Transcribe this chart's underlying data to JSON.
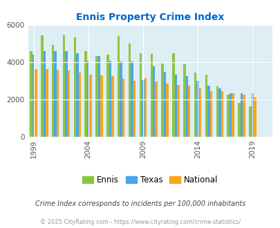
{
  "title": "Ennis Property Crime Index",
  "subtitle": "Crime Index corresponds to incidents per 100,000 inhabitants",
  "footer": "© 2025 CityRating.com - https://www.cityrating.com/crime-statistics/",
  "years": [
    1999,
    2000,
    2001,
    2002,
    2003,
    2004,
    2005,
    2006,
    2007,
    2008,
    2009,
    2010,
    2011,
    2012,
    2013,
    2014,
    2015,
    2016,
    2017,
    2018,
    2019,
    2020
  ],
  "ennis": [
    4600,
    5450,
    4950,
    5450,
    5350,
    4600,
    4350,
    4400,
    5400,
    5000,
    4500,
    4450,
    3950,
    4500,
    3900,
    3450,
    3350,
    2700,
    2250,
    1800,
    1650,
    0
  ],
  "texas": [
    4400,
    4600,
    4600,
    4600,
    4500,
    4100,
    4350,
    4100,
    4050,
    4050,
    3050,
    3800,
    3500,
    3350,
    3250,
    3000,
    2750,
    2600,
    2350,
    2350,
    2350,
    0
  ],
  "national": [
    3650,
    3650,
    3600,
    3550,
    3450,
    3350,
    3300,
    3250,
    3100,
    3000,
    3150,
    2950,
    2850,
    2800,
    2750,
    2600,
    2450,
    2450,
    2350,
    2250,
    2100,
    0
  ],
  "bar_width": 0.22,
  "color_ennis": "#8cc63f",
  "color_texas": "#4da6e8",
  "color_national": "#f5a623",
  "bg_color": "#ddeef5",
  "ylim": [
    0,
    6000
  ],
  "yticks": [
    0,
    2000,
    4000,
    6000
  ],
  "xtick_years": [
    1999,
    2004,
    2009,
    2014,
    2019
  ],
  "title_color": "#0066cc",
  "subtitle_color": "#444444",
  "footer_color": "#999999"
}
